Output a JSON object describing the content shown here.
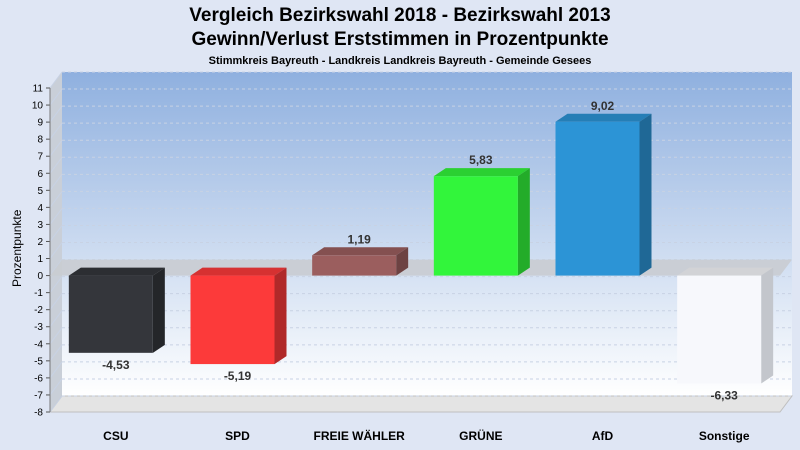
{
  "chart_data": {
    "type": "bar",
    "title": "Vergleich Bezirkswahl 2018 - Bezirkswahl 2013",
    "subtitle": "Gewinn/Verlust Erststimmen in Prozentpunkte",
    "caption": "Stimmkreis Bayreuth - Landkreis Landkreis Bayreuth - Gemeinde Gesees",
    "xlabel": "",
    "ylabel": "Prozentpunkte",
    "ylim": [
      -8,
      11
    ],
    "yticks": [
      "-8",
      "-7",
      "-6",
      "-5",
      "-4",
      "-3",
      "-2",
      "-1",
      "0",
      "1",
      "2",
      "3",
      "4",
      "5",
      "6",
      "7",
      "8",
      "9",
      "10",
      "11"
    ],
    "categories": [
      "CSU",
      "SPD",
      "FREIE WÄHLER",
      "GRÜNE",
      "AfD",
      "Sonstige"
    ],
    "values": [
      -4.53,
      -5.19,
      1.19,
      5.83,
      9.02,
      -6.33
    ],
    "value_labels": [
      "-4,53",
      "-5,19",
      "1,19",
      "5,83",
      "9,02",
      "-6,33"
    ],
    "colors": [
      "#34363b",
      "#fc3a3a",
      "#9b5e5e",
      "#32f53b",
      "#2c94d6",
      "#f7f8fc"
    ],
    "grid": true,
    "legend": "none"
  }
}
